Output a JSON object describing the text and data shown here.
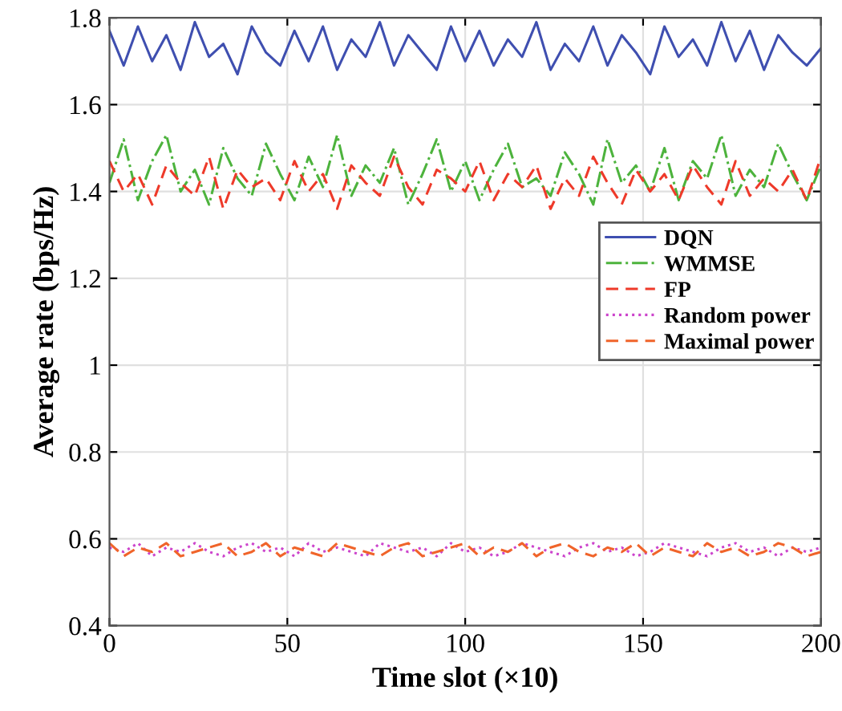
{
  "chart_data": {
    "type": "line",
    "xlabel": "Time slot (×10)",
    "ylabel": "Average rate (bps/Hz)",
    "xlim": [
      0,
      200
    ],
    "xticks": [
      0,
      50,
      100,
      150,
      200
    ],
    "ylim": [
      0.4,
      1.8
    ],
    "yticks": [
      0.4,
      0.6,
      0.8,
      1,
      1.2,
      1.4,
      1.6,
      1.8
    ],
    "grid": true,
    "legend": "right",
    "marker": "none",
    "x": [
      0,
      4,
      8,
      12,
      16,
      20,
      24,
      28,
      32,
      36,
      40,
      44,
      48,
      52,
      56,
      60,
      64,
      68,
      72,
      76,
      80,
      84,
      88,
      92,
      96,
      100,
      104,
      108,
      112,
      116,
      120,
      124,
      128,
      132,
      136,
      140,
      144,
      148,
      152,
      156,
      160,
      164,
      168,
      172,
      176,
      180,
      184,
      188,
      192,
      196,
      200
    ],
    "series": [
      {
        "name": "DQN",
        "color": "#3f4fb0",
        "line_style": "solid",
        "values": [
          1.77,
          1.69,
          1.78,
          1.7,
          1.76,
          1.68,
          1.79,
          1.71,
          1.74,
          1.67,
          1.78,
          1.72,
          1.69,
          1.77,
          1.7,
          1.78,
          1.68,
          1.75,
          1.71,
          1.79,
          1.69,
          1.76,
          1.72,
          1.68,
          1.78,
          1.7,
          1.77,
          1.69,
          1.75,
          1.71,
          1.79,
          1.68,
          1.74,
          1.7,
          1.78,
          1.69,
          1.76,
          1.72,
          1.67,
          1.78,
          1.71,
          1.75,
          1.69,
          1.79,
          1.7,
          1.77,
          1.68,
          1.76,
          1.72,
          1.69,
          1.73
        ]
      },
      {
        "name": "WMMSE",
        "color": "#4db33d",
        "line_style": "dashdot",
        "values": [
          1.42,
          1.52,
          1.38,
          1.47,
          1.53,
          1.4,
          1.45,
          1.37,
          1.5,
          1.43,
          1.39,
          1.51,
          1.44,
          1.38,
          1.48,
          1.41,
          1.53,
          1.39,
          1.46,
          1.42,
          1.5,
          1.37,
          1.44,
          1.52,
          1.4,
          1.47,
          1.38,
          1.45,
          1.51,
          1.41,
          1.43,
          1.39,
          1.49,
          1.44,
          1.37,
          1.52,
          1.42,
          1.46,
          1.4,
          1.5,
          1.38,
          1.47,
          1.43,
          1.53,
          1.39,
          1.45,
          1.41,
          1.51,
          1.44,
          1.38,
          1.46
        ]
      },
      {
        "name": "FP",
        "color": "#ee3a2a",
        "line_style": "dashed",
        "values": [
          1.47,
          1.4,
          1.44,
          1.37,
          1.46,
          1.42,
          1.39,
          1.48,
          1.36,
          1.45,
          1.41,
          1.43,
          1.38,
          1.47,
          1.4,
          1.44,
          1.36,
          1.46,
          1.42,
          1.39,
          1.48,
          1.41,
          1.37,
          1.45,
          1.43,
          1.4,
          1.47,
          1.38,
          1.44,
          1.41,
          1.46,
          1.36,
          1.43,
          1.39,
          1.48,
          1.42,
          1.37,
          1.45,
          1.4,
          1.44,
          1.38,
          1.46,
          1.41,
          1.37,
          1.47,
          1.39,
          1.43,
          1.4,
          1.45,
          1.38,
          1.48
        ]
      },
      {
        "name": "Random power",
        "color": "#cc44cc",
        "line_style": "dotted",
        "values": [
          0.58,
          0.57,
          0.59,
          0.56,
          0.58,
          0.57,
          0.59,
          0.57,
          0.56,
          0.58,
          0.59,
          0.57,
          0.58,
          0.56,
          0.59,
          0.57,
          0.58,
          0.57,
          0.56,
          0.59,
          0.58,
          0.57,
          0.58,
          0.56,
          0.59,
          0.57,
          0.58,
          0.56,
          0.57,
          0.59,
          0.58,
          0.57,
          0.56,
          0.58,
          0.59,
          0.57,
          0.58,
          0.56,
          0.57,
          0.59,
          0.58,
          0.57,
          0.56,
          0.58,
          0.59,
          0.57,
          0.58,
          0.56,
          0.58,
          0.57,
          0.58
        ]
      },
      {
        "name": "Maximal power",
        "color": "#f0642a",
        "line_style": "dashed",
        "values": [
          0.59,
          0.56,
          0.58,
          0.57,
          0.59,
          0.56,
          0.57,
          0.58,
          0.59,
          0.56,
          0.57,
          0.59,
          0.56,
          0.58,
          0.57,
          0.56,
          0.59,
          0.58,
          0.57,
          0.56,
          0.58,
          0.59,
          0.56,
          0.57,
          0.58,
          0.59,
          0.56,
          0.58,
          0.57,
          0.59,
          0.56,
          0.58,
          0.59,
          0.57,
          0.56,
          0.58,
          0.57,
          0.59,
          0.56,
          0.58,
          0.57,
          0.56,
          0.59,
          0.57,
          0.58,
          0.56,
          0.57,
          0.59,
          0.58,
          0.56,
          0.57
        ]
      }
    ]
  }
}
